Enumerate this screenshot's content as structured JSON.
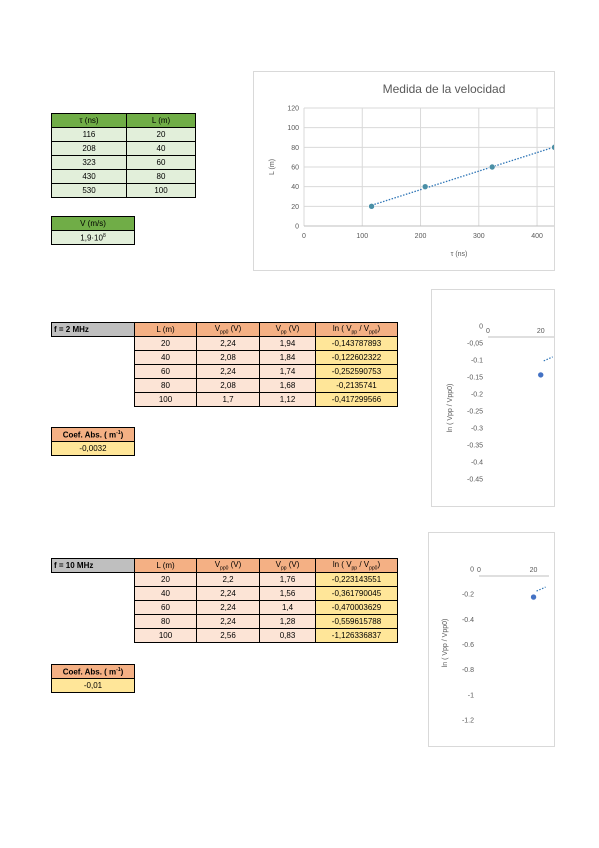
{
  "velocity_table": {
    "headers": [
      "τ (ns)",
      "L (m)"
    ],
    "rows": [
      [
        "116",
        "20"
      ],
      [
        "208",
        "40"
      ],
      [
        "323",
        "60"
      ],
      [
        "430",
        "80"
      ],
      [
        "530",
        "100"
      ]
    ]
  },
  "velocity_result": {
    "header": "V (m/s)",
    "value": "1,9·10",
    "exponent": "8"
  },
  "table_2mhz": {
    "label": "f = 2 MHz",
    "headers": [
      "L (m)",
      "V_pp0 (V)",
      "V_pp (V)",
      "ln ( V_pp / V_pp0)"
    ],
    "rows": [
      [
        "20",
        "2,24",
        "1,94",
        "-0,143787893"
      ],
      [
        "40",
        "2,08",
        "1,84",
        "-0,122602322"
      ],
      [
        "60",
        "2,24",
        "1,74",
        "-0,252590753"
      ],
      [
        "80",
        "2,08",
        "1,68",
        "-0,2135741"
      ],
      [
        "100",
        "1,7",
        "1,12",
        "-0,417299566"
      ]
    ],
    "coef_label": "Coef. Abs. ( m",
    "coef_exp": "-1",
    "coef_value": "-0,0032"
  },
  "table_10mhz": {
    "label": "f = 10 MHz",
    "headers": [
      "L (m)",
      "V_pp0 (V)",
      "V_pp (V)",
      "ln ( V_pp / V_pp0)"
    ],
    "rows": [
      [
        "20",
        "2,2",
        "1,76",
        "-0,223143551"
      ],
      [
        "40",
        "2,24",
        "1,56",
        "-0,361790045"
      ],
      [
        "60",
        "2,24",
        "1,4",
        "-0,470003629"
      ],
      [
        "80",
        "2,24",
        "1,28",
        "-0,559615788"
      ],
      [
        "100",
        "2,56",
        "0,83",
        "-1,126336837"
      ]
    ],
    "coef_label": "Coef. Abs. ( m",
    "coef_exp": "-1",
    "coef_value": "-0,01"
  },
  "chart_data": [
    {
      "type": "scatter",
      "title": "Medida de la velocidad",
      "xlabel": "τ (ns)",
      "ylabel": "L (m)",
      "xlim": [
        0,
        460
      ],
      "ylim": [
        0,
        120
      ],
      "xticks": [
        0,
        100,
        200,
        300,
        400
      ],
      "yticks": [
        0,
        20,
        40,
        60,
        80,
        100,
        120
      ],
      "grid": true,
      "trendline": "linear",
      "color": "#4a8fa6",
      "x": [
        116,
        208,
        323,
        430
      ],
      "y": [
        20,
        40,
        60,
        80
      ]
    },
    {
      "type": "scatter",
      "title": "",
      "xlabel": "",
      "ylabel": "ln ( Vpp / Vpp0)",
      "xlim": [
        0,
        22
      ],
      "ylim": [
        -0.45,
        0
      ],
      "xticks": [
        0,
        20
      ],
      "xtick_labels": [
        "0",
        "20"
      ],
      "yticks": [
        0,
        -0.05,
        -0.1,
        -0.15,
        -0.2,
        -0.25,
        -0.3,
        -0.35,
        -0.4,
        -0.45
      ],
      "ytick_labels": [
        "0",
        "-0,05",
        "-0.1",
        "-0.15",
        "-0.2",
        "-0.25",
        "-0.3",
        "-0.35",
        "-0.4",
        "-0.45"
      ],
      "grid": false,
      "color": "#4472c4",
      "x": [
        20
      ],
      "y": [
        -0.143787893
      ]
    },
    {
      "type": "scatter",
      "title": "",
      "xlabel": "",
      "ylabel": "ln ( Vpp / Vpp0)",
      "xlim": [
        0,
        22
      ],
      "ylim": [
        -1.2,
        0
      ],
      "xticks": [
        0,
        20
      ],
      "xtick_labels": [
        "0",
        "20"
      ],
      "yticks": [
        0,
        -0.2,
        -0.4,
        -0.6,
        -0.8,
        -1,
        -1.2
      ],
      "ytick_labels": [
        "0",
        "-0.2",
        "-0.4",
        "-0.6",
        "-0.8",
        "-1",
        "-1.2"
      ],
      "grid": false,
      "color": "#4472c4",
      "x": [
        20
      ],
      "y": [
        -0.223143551
      ]
    }
  ]
}
